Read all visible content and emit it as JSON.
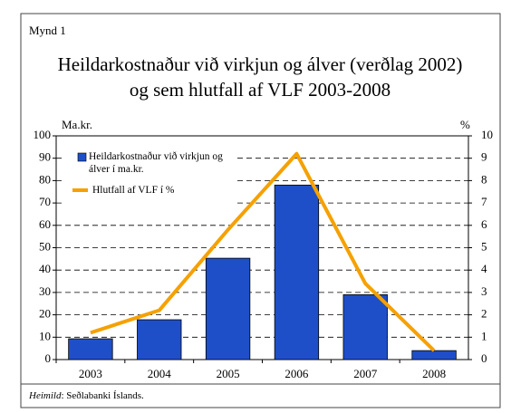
{
  "figure_label": "Mynd 1",
  "chart_data": {
    "type": "bar",
    "title": [
      "Heildarkostnaður við virkjun og álver (verðlag 2002)",
      "og sem hlutfall af VLF 2003-2008"
    ],
    "y_label": "Ma.kr.",
    "y2_label": "%",
    "categories": [
      "2003",
      "2004",
      "2005",
      "2006",
      "2007",
      "2008"
    ],
    "series": [
      {
        "name": "Heildarkostnaður við virkjun og álver í ma.kr.",
        "type": "bar",
        "color": "#1f4fc8",
        "values": [
          9.3,
          17.8,
          45.3,
          78,
          29,
          4
        ]
      },
      {
        "name": "Hlutfall af VLF  í %",
        "type": "line",
        "color": "#f5a100",
        "axis": "y2",
        "values": [
          1.2,
          2.2,
          5.8,
          9.2,
          3.4,
          0.4
        ]
      }
    ],
    "ylim": [
      0,
      100
    ],
    "yticks": [
      0,
      10,
      20,
      30,
      40,
      50,
      60,
      70,
      80,
      90,
      100
    ],
    "y2lim": [
      0,
      10
    ],
    "y2ticks": [
      0,
      1,
      2,
      3,
      4,
      5,
      6,
      7,
      8,
      9,
      10
    ],
    "grid": true,
    "legend": "top-left"
  },
  "source": {
    "label": "Heimild",
    "text": ": Seðlabanki Íslands."
  }
}
